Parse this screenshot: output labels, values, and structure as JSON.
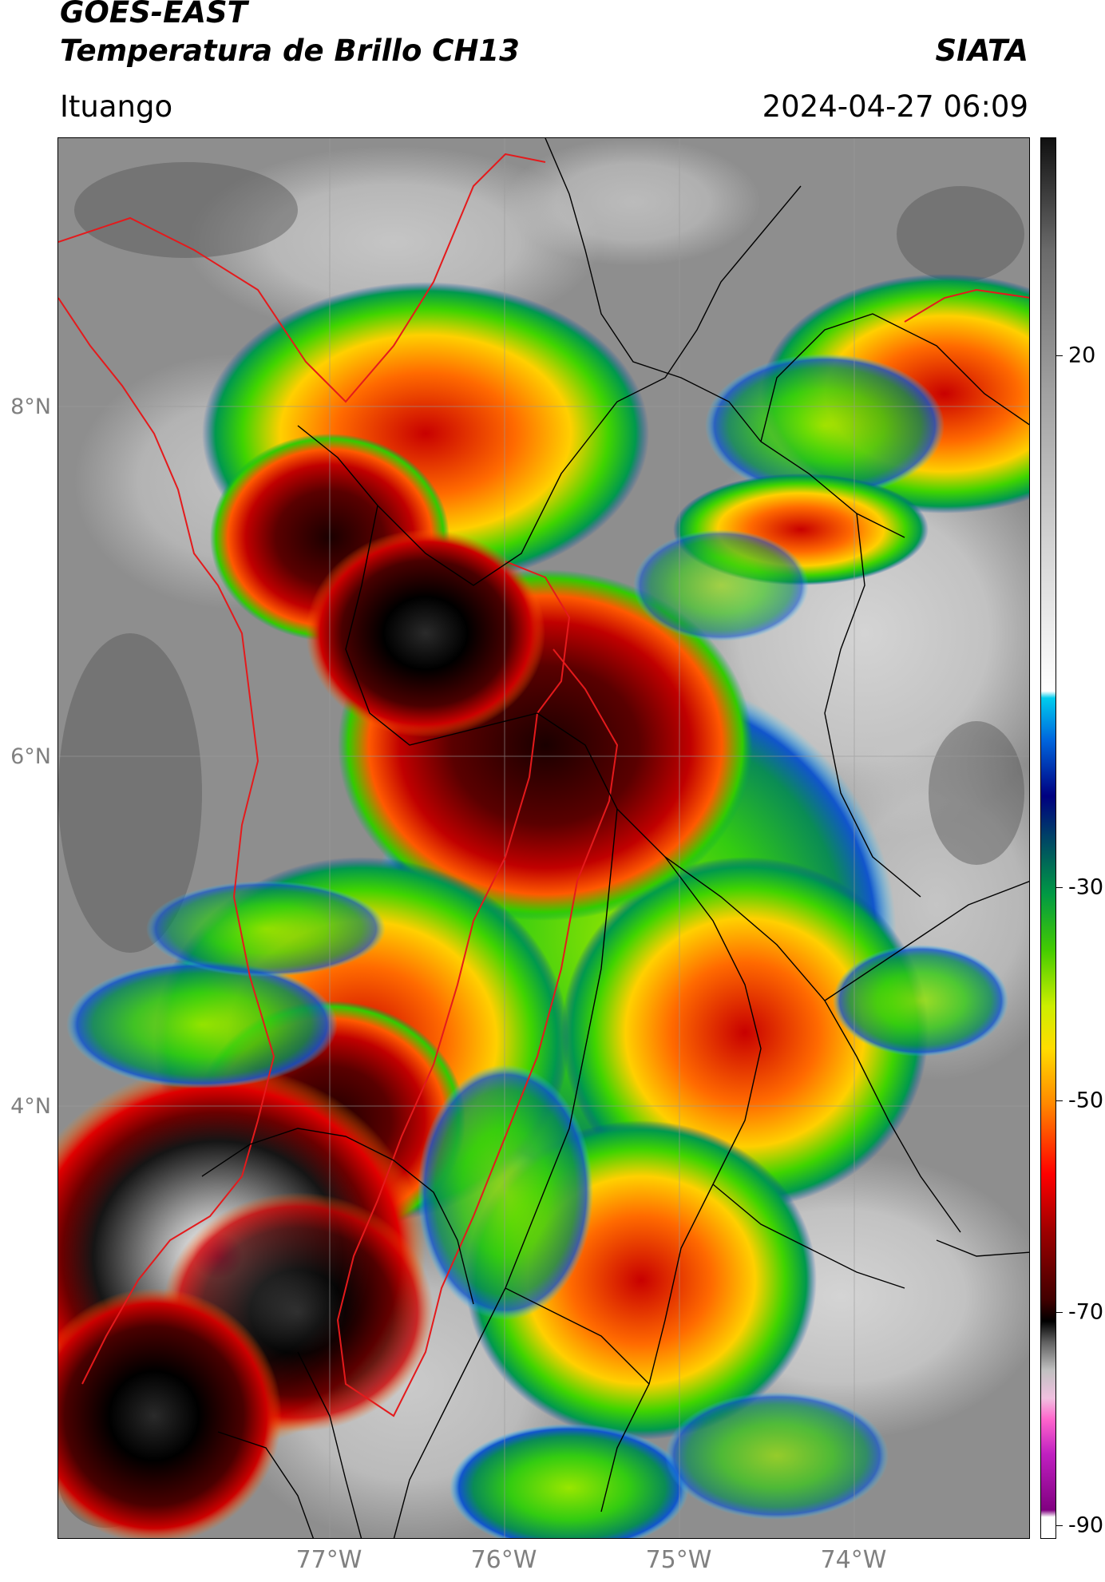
{
  "header": {
    "title_line1": "GOES-EAST",
    "title_line2": "Temperatura de Brillo CH13",
    "brand": "SIATA",
    "location": "Ituango",
    "timestamp": "2024-04-27 06:09"
  },
  "map": {
    "lat_labels": [
      "8°N",
      "6°N",
      "4°N"
    ],
    "lon_labels": [
      "77°W",
      "76°W",
      "75°W",
      "74°W"
    ],
    "land_base_color": "#8a8a8a",
    "border_colors": {
      "international": "#e41a1c",
      "departmental": "#000000"
    }
  },
  "colorbar": {
    "tick_labels": [
      "20",
      "-30",
      "-50",
      "-70",
      "-90"
    ],
    "palette": [
      "#ffffff",
      "#b000b0",
      "#ff66cc",
      "#d0d0d0",
      "#404040",
      "#000000",
      "#800000",
      "#ff0000",
      "#ff9900",
      "#ffff00",
      "#00cc00",
      "#006633",
      "#000080",
      "#0077ff",
      "#00ccff",
      "#ffffff",
      "#c0c0c0",
      "#808080",
      "#404040",
      "#000000"
    ]
  }
}
